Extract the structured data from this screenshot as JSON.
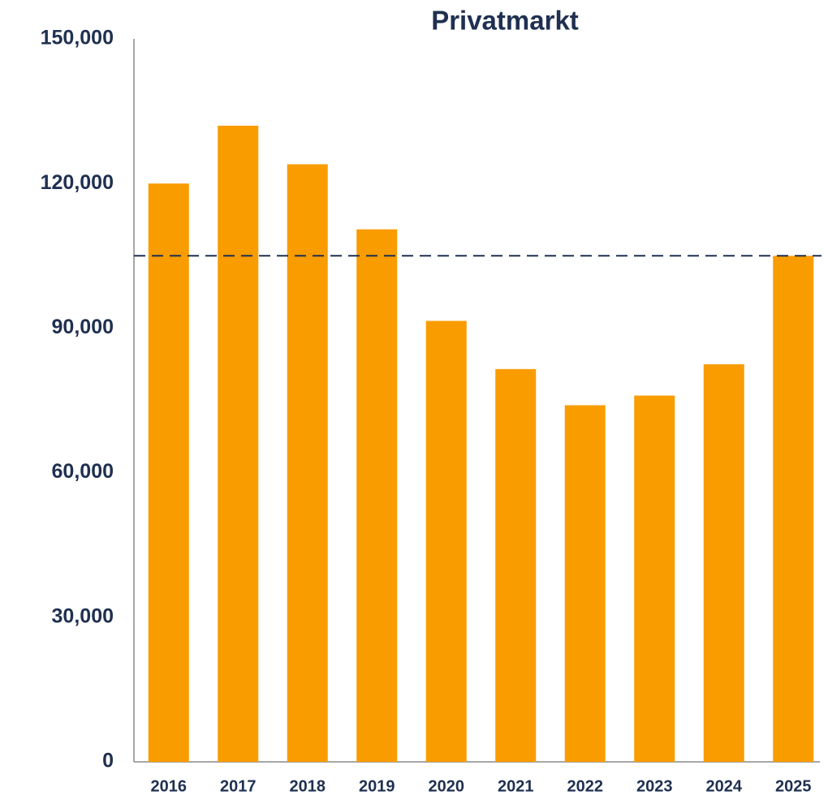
{
  "chart_data": {
    "type": "bar",
    "title": "Privatmarkt",
    "categories": [
      "2016",
      "2017",
      "2018",
      "2019",
      "2020",
      "2021",
      "2022",
      "2023",
      "2024",
      "2025"
    ],
    "values": [
      120000,
      132000,
      124000,
      110500,
      91500,
      81500,
      74000,
      76000,
      82500,
      105000
    ],
    "color": "#f99c00",
    "reference_line": 105000,
    "ylim": [
      0,
      150000
    ],
    "yticks": [
      0,
      {
        "value": 30000,
        "label": "30,000"
      },
      {
        "value": 60000,
        "label": "60,000"
      },
      {
        "value": 90000,
        "label": "90,000"
      },
      {
        "value": 120000,
        "label": "120,000"
      },
      {
        "value": 150000,
        "label": "150,000"
      }
    ],
    "grid": false
  }
}
